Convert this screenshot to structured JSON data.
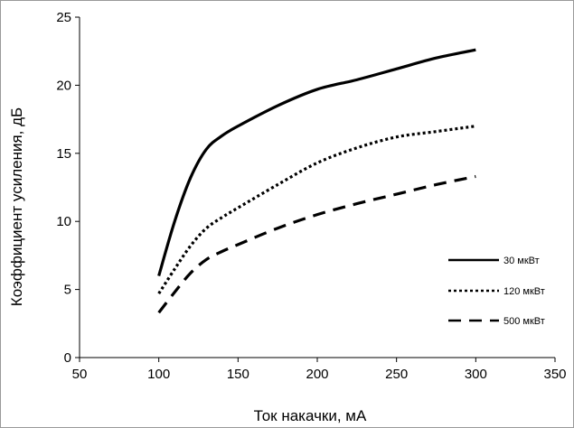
{
  "chart_data": {
    "type": "line",
    "title": "",
    "xlabel": "Ток накачки, мА",
    "ylabel": "Коэффициент усиления, дБ",
    "xlim": [
      50,
      350
    ],
    "ylim": [
      0,
      25
    ],
    "x_ticks": [
      50,
      100,
      150,
      200,
      250,
      300,
      350
    ],
    "y_ticks": [
      0,
      5,
      10,
      15,
      20,
      25
    ],
    "grid": false,
    "legend_position": "right",
    "series": [
      {
        "name": "30 мкВт",
        "style": "solid",
        "color": "#000000",
        "x": [
          100,
          110,
          120,
          130,
          140,
          150,
          175,
          200,
          225,
          250,
          275,
          300
        ],
        "y": [
          6.0,
          10.0,
          13.2,
          15.3,
          16.3,
          17.0,
          18.5,
          19.7,
          20.4,
          21.2,
          22.0,
          22.6
        ]
      },
      {
        "name": "120 мкВт",
        "style": "dotted",
        "color": "#000000",
        "x": [
          100,
          110,
          120,
          130,
          140,
          150,
          175,
          200,
          225,
          250,
          275,
          300
        ],
        "y": [
          4.7,
          6.5,
          8.2,
          9.5,
          10.3,
          11.0,
          12.7,
          14.3,
          15.4,
          16.2,
          16.6,
          17.0
        ]
      },
      {
        "name": "500 мкВт",
        "style": "dashed",
        "color": "#000000",
        "x": [
          100,
          110,
          120,
          130,
          140,
          150,
          175,
          200,
          225,
          250,
          275,
          300
        ],
        "y": [
          3.3,
          4.8,
          6.2,
          7.2,
          7.8,
          8.3,
          9.5,
          10.5,
          11.3,
          12.0,
          12.7,
          13.3
        ]
      }
    ]
  }
}
